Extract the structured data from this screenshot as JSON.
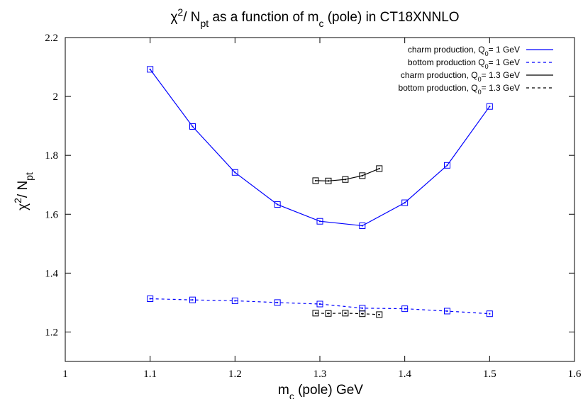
{
  "chart_data": {
    "type": "line",
    "title": {
      "parts": [
        {
          "text": "χ",
          "style": "normal"
        },
        {
          "text": "2",
          "style": "sup"
        },
        {
          "text": "/ N",
          "style": "normal"
        },
        {
          "text": "pt",
          "style": "sub"
        },
        {
          "text": "  as a function of m",
          "style": "normal"
        },
        {
          "text": "c",
          "style": "sub"
        },
        {
          "text": " (pole) in CT18XNNLO",
          "style": "normal"
        }
      ]
    },
    "xlabel": {
      "parts": [
        {
          "text": "m",
          "style": "normal"
        },
        {
          "text": "c",
          "style": "sub"
        },
        {
          "text": " (pole)  GeV",
          "style": "normal"
        }
      ]
    },
    "ylabel": {
      "parts": [
        {
          "text": "χ",
          "style": "normal"
        },
        {
          "text": "2",
          "style": "sup"
        },
        {
          "text": "/ N",
          "style": "normal"
        },
        {
          "text": "pt",
          "style": "sub"
        }
      ]
    },
    "xlim": [
      1.0,
      1.6
    ],
    "ylim": [
      1.1,
      2.2
    ],
    "xticks": [
      1.0,
      1.1,
      1.2,
      1.3,
      1.4,
      1.5,
      1.6
    ],
    "xtick_labels": [
      "1",
      "1.1",
      "1.2",
      "1.3",
      "1.4",
      "1.5",
      "1.6"
    ],
    "yticks": [
      1.2,
      1.4,
      1.6,
      1.8,
      2.0,
      2.2
    ],
    "ytick_labels": [
      "1.2",
      "1.4",
      "1.6",
      "1.8",
      "2",
      "2.2"
    ],
    "grid": false,
    "legend_position": "top-right",
    "marker": "open-square",
    "series": [
      {
        "name": {
          "parts": [
            {
              "text": "charm production, Q",
              "style": "normal"
            },
            {
              "text": "0",
              "style": "sub"
            },
            {
              "text": "= 1 GeV",
              "style": "normal"
            }
          ]
        },
        "color": "#0000ff",
        "dash": "solid",
        "x": [
          1.1,
          1.15,
          1.2,
          1.25,
          1.3,
          1.35,
          1.4,
          1.45,
          1.5
        ],
        "y": [
          2.092,
          1.898,
          1.742,
          1.633,
          1.576,
          1.561,
          1.639,
          1.766,
          1.966
        ]
      },
      {
        "name": {
          "parts": [
            {
              "text": "bottom production Q",
              "style": "normal"
            },
            {
              "text": "0",
              "style": "sub"
            },
            {
              "text": "= 1 GeV",
              "style": "normal"
            }
          ]
        },
        "color": "#0000ff",
        "dash": "dashed",
        "x": [
          1.1,
          1.15,
          1.2,
          1.25,
          1.3,
          1.35,
          1.4,
          1.45,
          1.5
        ],
        "y": [
          1.313,
          1.309,
          1.306,
          1.3,
          1.295,
          1.281,
          1.279,
          1.271,
          1.262
        ]
      },
      {
        "name": {
          "parts": [
            {
              "text": "charm production, Q",
              "style": "normal"
            },
            {
              "text": "0",
              "style": "sub"
            },
            {
              "text": "= 1.3 GeV",
              "style": "normal"
            }
          ]
        },
        "color": "#000000",
        "dash": "solid",
        "x": [
          1.295,
          1.31,
          1.33,
          1.35,
          1.37
        ],
        "y": [
          1.714,
          1.713,
          1.718,
          1.731,
          1.755
        ]
      },
      {
        "name": {
          "parts": [
            {
              "text": "bottom production, Q",
              "style": "normal"
            },
            {
              "text": "0",
              "style": "sub"
            },
            {
              "text": "= 1.3 GeV",
              "style": "normal"
            }
          ]
        },
        "color": "#000000",
        "dash": "dashed",
        "x": [
          1.295,
          1.31,
          1.33,
          1.35,
          1.37
        ],
        "y": [
          1.264,
          1.263,
          1.264,
          1.262,
          1.259
        ]
      }
    ]
  }
}
